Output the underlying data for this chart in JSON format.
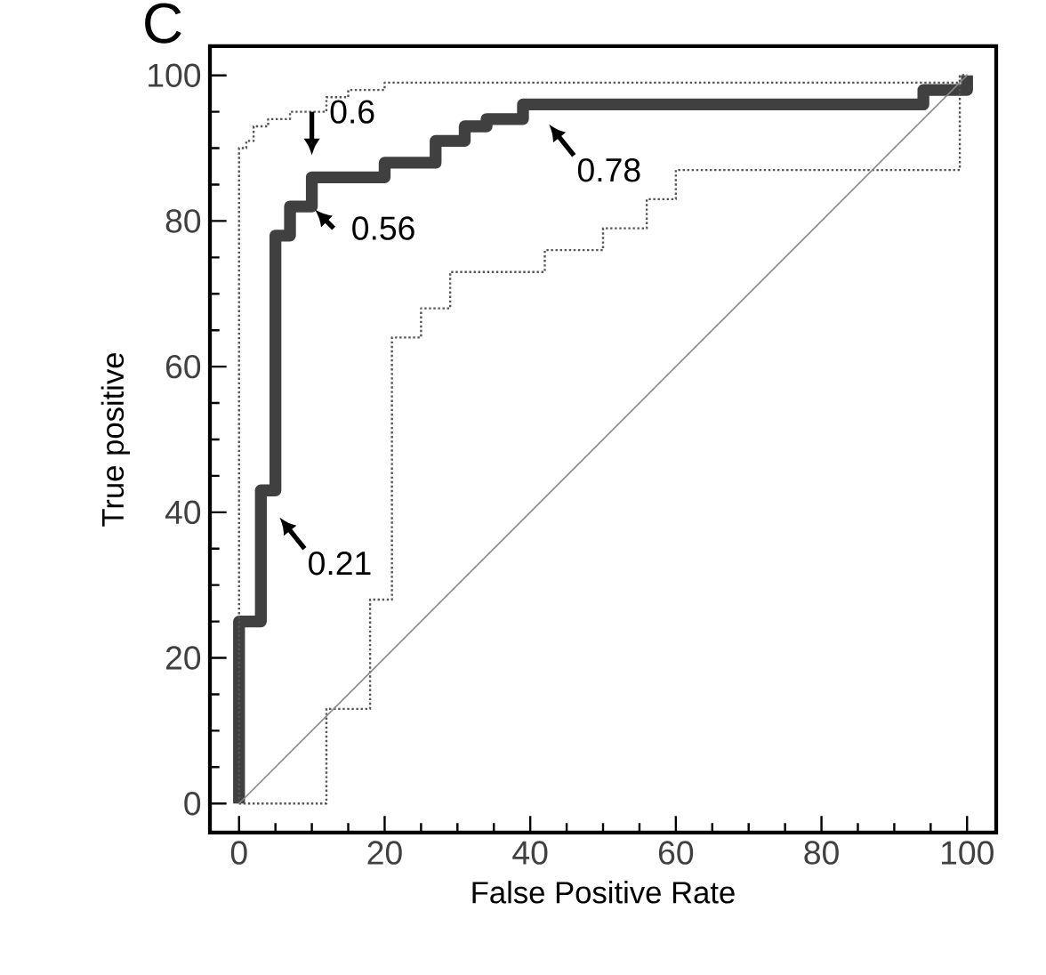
{
  "chart_data": {
    "type": "step",
    "title": "C",
    "xlabel": "False Positive Rate",
    "ylabel": "True positive",
    "xlim": [
      -4,
      104
    ],
    "ylim": [
      -4,
      104
    ],
    "xticks": [
      0,
      20,
      40,
      60,
      80,
      100
    ],
    "yticks": [
      0,
      20,
      40,
      60,
      80,
      100
    ],
    "grid": false,
    "legend": false,
    "marker": "none",
    "series": [
      {
        "color": "#404040",
        "line_style": "solid",
        "x": [
          0,
          0,
          3,
          5,
          7,
          10,
          20,
          27,
          31,
          34,
          39,
          94,
          100
        ],
        "values": [
          0,
          25,
          43,
          78,
          82,
          86,
          88,
          91,
          93,
          94,
          96,
          98,
          100
        ]
      },
      {
        "color": "#555555",
        "line_style": "dotted",
        "x": [
          0,
          0,
          1,
          2,
          4,
          7,
          12,
          15,
          20,
          78,
          99,
          100
        ],
        "values": [
          0,
          90,
          91,
          93,
          94,
          95,
          97,
          98,
          99,
          99,
          100,
          100
        ]
      },
      {
        "color": "#555555",
        "line_style": "dotted",
        "x": [
          0,
          12,
          18,
          21,
          25,
          29,
          42,
          50,
          56,
          60,
          99,
          100
        ],
        "values": [
          0,
          13,
          28,
          64,
          68,
          73,
          76,
          79,
          83,
          87,
          100,
          100
        ]
      },
      {
        "type": "line",
        "color": "#888888",
        "line_style": "solid",
        "x": [
          0,
          100
        ],
        "values": [
          0,
          100
        ]
      }
    ],
    "annotations": [
      {
        "text": "0.21",
        "x": 5,
        "y": 40
      },
      {
        "text": "0.56",
        "x": 10,
        "y": 82
      },
      {
        "text": "0.6",
        "x": 10,
        "y": 88
      },
      {
        "text": "0.78",
        "x": 42,
        "y": 94
      }
    ]
  }
}
